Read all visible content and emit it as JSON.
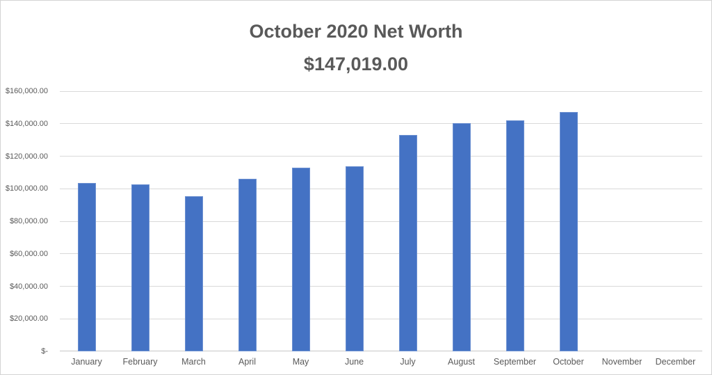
{
  "chart_title": {
    "line1": "October 2020 Net Worth",
    "line2": "$147,019.00"
  },
  "chart_data": {
    "type": "bar",
    "title": "October 2020 Net Worth",
    "subtitle": "$147,019.00",
    "categories": [
      "January",
      "February",
      "March",
      "April",
      "May",
      "June",
      "July",
      "August",
      "September",
      "October",
      "November",
      "December"
    ],
    "values": [
      103500,
      102500,
      95500,
      106000,
      112800,
      114000,
      133000,
      140500,
      142000,
      147019,
      0,
      0
    ],
    "ylim": [
      0,
      160000
    ],
    "ytick_step": 20000,
    "ytick_labels": [
      "$-",
      "$20,000.00",
      "$40,000.00",
      "$60,000.00",
      "$80,000.00",
      "$100,000.00",
      "$120,000.00",
      "$140,000.00",
      "$160,000.00"
    ],
    "grid": true,
    "legend": "none",
    "bar_color": "#4472C4"
  },
  "colors": {
    "bar": "#4472C4",
    "gridline": "#D9D9D9",
    "axis_line": "#C6C6C6",
    "text": "#595959",
    "frame_border": "#D4D4D4",
    "background": "#FFFFFF"
  }
}
